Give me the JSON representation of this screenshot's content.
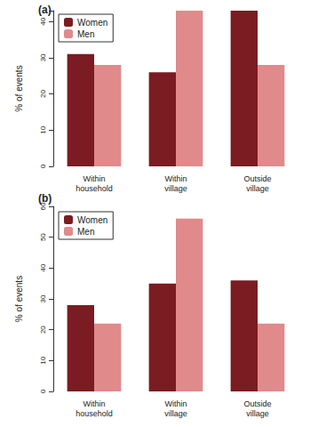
{
  "chart_data": [
    {
      "type": "bar",
      "title": "(a)",
      "y_label": "% of events",
      "categories": [
        "Within household",
        "Within village",
        "Outside village"
      ],
      "series": [
        {
          "name": "Women",
          "color": "#7a1c22",
          "values": [
            31,
            26,
            43
          ]
        },
        {
          "name": "Men",
          "color": "#e08a8c",
          "values": [
            28,
            43,
            28
          ]
        }
      ],
      "ylim": [
        0,
        43
      ],
      "yticks": [
        0,
        10,
        20,
        30,
        40
      ],
      "grid": false,
      "legend": "upper left"
    },
    {
      "type": "bar",
      "title": "(b)",
      "y_label": "% of events",
      "categories": [
        "Within household",
        "Within village",
        "Outside village"
      ],
      "series": [
        {
          "name": "Women",
          "color": "#7a1c22",
          "values": [
            28,
            35,
            36
          ]
        },
        {
          "name": "Men",
          "color": "#e08a8c",
          "values": [
            22,
            56,
            22
          ]
        }
      ],
      "ylim": [
        0,
        60
      ],
      "yticks": [
        0,
        10,
        20,
        30,
        40,
        50,
        60
      ],
      "grid": false,
      "legend": "upper left"
    }
  ]
}
